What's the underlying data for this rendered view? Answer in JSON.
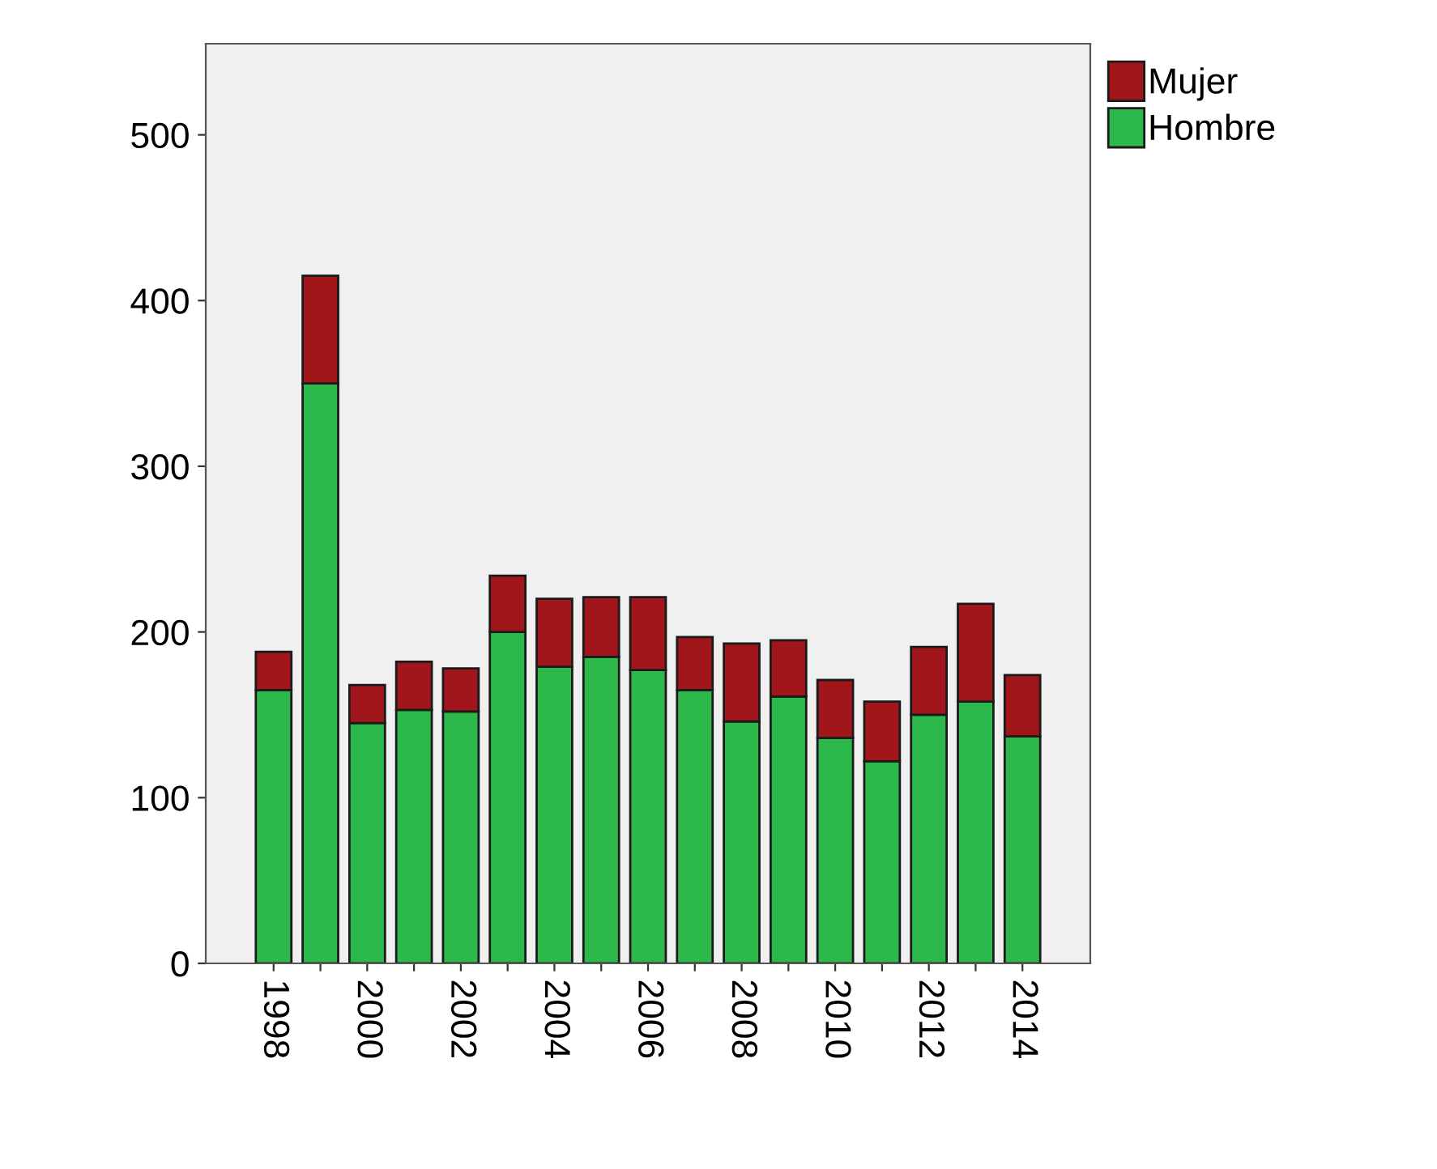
{
  "chart_data": {
    "type": "bar",
    "stacked": true,
    "categories": [
      "1998",
      null,
      "2000",
      null,
      "2002",
      null,
      "2004",
      null,
      "2006",
      null,
      "2008",
      null,
      "2010",
      null,
      "2012",
      null,
      "2014"
    ],
    "series": [
      {
        "name": "Hombre",
        "color": "#2db84b",
        "values": [
          165,
          350,
          145,
          153,
          152,
          200,
          179,
          185,
          177,
          165,
          146,
          161,
          136,
          122,
          150,
          158,
          137
        ]
      },
      {
        "name": "Mujer",
        "color": "#a0161b",
        "values": [
          23,
          65,
          23,
          29,
          26,
          34,
          41,
          36,
          44,
          32,
          47,
          34,
          35,
          36,
          41,
          59,
          37
        ]
      }
    ],
    "ylim": [
      0,
      555
    ],
    "yticks": [
      0,
      100,
      200,
      300,
      400,
      500
    ],
    "grid": false,
    "legend": "top right"
  }
}
